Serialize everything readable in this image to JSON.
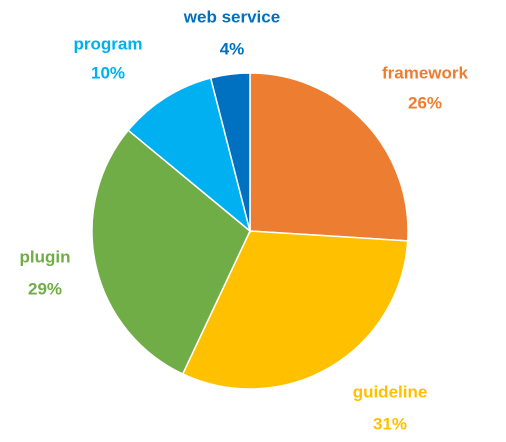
{
  "chart_data": {
    "type": "pie",
    "categories": [
      "framework",
      "guideline",
      "plugin",
      "program",
      "web service"
    ],
    "values": [
      26,
      31,
      29,
      10,
      4
    ],
    "value_labels": [
      "26%",
      "31%",
      "29%",
      "10%",
      "4%"
    ],
    "colors": [
      "#ED7D31",
      "#FFC000",
      "#70AD47",
      "#00B0F0",
      "#0070C0"
    ]
  }
}
